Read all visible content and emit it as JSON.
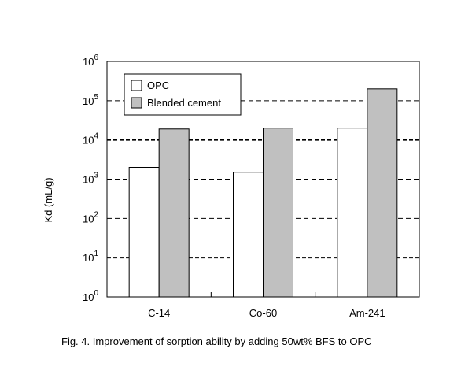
{
  "chart_data": {
    "type": "bar",
    "title": "",
    "ylabel": "Kd (mL/g)",
    "xlabel": "",
    "yscale": "log",
    "ylim": [
      1,
      1000000
    ],
    "ytick_base": "10",
    "ytick_exponents": [
      "0",
      "1",
      "2",
      "3",
      "4",
      "5",
      "6"
    ],
    "categories": [
      "C-14",
      "Co-60",
      "Am-241"
    ],
    "series": [
      {
        "name": "OPC",
        "color": "#ffffff",
        "values": [
          2000,
          1500,
          20000
        ]
      },
      {
        "name": "Blended cement",
        "color": "#c0c0c0",
        "values": [
          19000,
          20000,
          200000
        ]
      }
    ],
    "legend_position": "top-left",
    "grid": "dashed horizontal"
  },
  "caption": "Fig. 4.  Improvement of sorption ability by adding 50wt% BFS to OPC"
}
